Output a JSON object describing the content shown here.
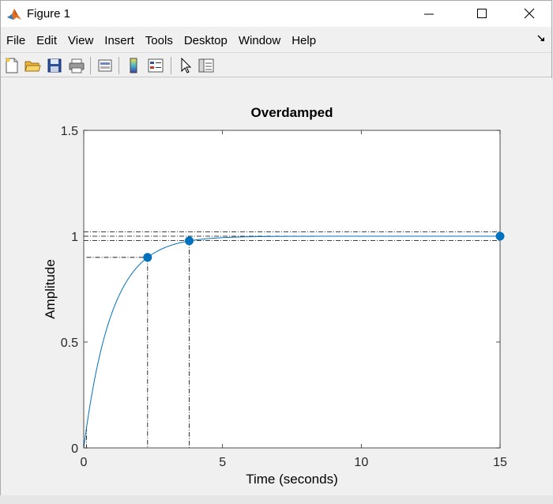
{
  "window": {
    "title": "Figure 1",
    "controls": {
      "minimize": "minimize",
      "maximize": "maximize",
      "close": "close"
    }
  },
  "menubar": {
    "items": [
      "File",
      "Edit",
      "View",
      "Insert",
      "Tools",
      "Desktop",
      "Window",
      "Help"
    ]
  },
  "toolbar": {
    "icons": [
      "new-figure-icon",
      "open-file-icon",
      "save-icon",
      "print-icon",
      "link-plot-icon",
      "colorbar-icon",
      "legend-icon",
      "pointer-icon",
      "property-editor-icon"
    ]
  },
  "colors": {
    "response": "#0072bd",
    "axes": "#262626",
    "characteristic": "#000000"
  },
  "chart_data": {
    "type": "line",
    "title": "Overdamped",
    "xlabel": "Time (seconds)",
    "ylabel": "Amplitude",
    "xlim": [
      0,
      15
    ],
    "ylim": [
      0,
      1.5
    ],
    "xticks": [
      0,
      5,
      10,
      15
    ],
    "xtick_labels": [
      "0",
      "5",
      "10",
      "15"
    ],
    "yticks": [
      0,
      0.5,
      1,
      1.5
    ],
    "ytick_labels": [
      "0",
      "0.5",
      "1",
      "1.5"
    ],
    "grid": false,
    "series": [
      {
        "time_constant": 1.0,
        "x_start": 0.0,
        "x_end": 15,
        "final_value": 1.0
      }
    ],
    "markers": [
      {
        "x": 2.3,
        "y": 0.9
      },
      {
        "x": 3.8,
        "y": 0.978
      },
      {
        "x": 15,
        "y": 1.0
      }
    ],
    "rise_time_lines": {
      "x_low": 0.1,
      "y_low": 0.1,
      "x_high": 2.3,
      "y_high": 0.9
    },
    "settling_lines": {
      "x": 3.8,
      "y": 0.978,
      "band_low": 0.98,
      "band_high": 1.02
    },
    "steady_state_line": {
      "y": 1.0
    }
  }
}
